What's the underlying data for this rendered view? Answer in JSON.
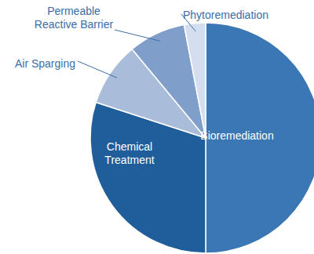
{
  "chart_data": {
    "type": "pie",
    "categories": [
      "Bioremediation",
      "Chemical Treatment",
      "Air Sparging",
      "Permeable Reactive Barrier",
      "Phytoremediation"
    ],
    "values": [
      50,
      30,
      9,
      8,
      3
    ],
    "colors": [
      "#3b77b4",
      "#1f5d9b",
      "#a9bcd9",
      "#7f9ec9",
      "#d4deee"
    ]
  }
}
